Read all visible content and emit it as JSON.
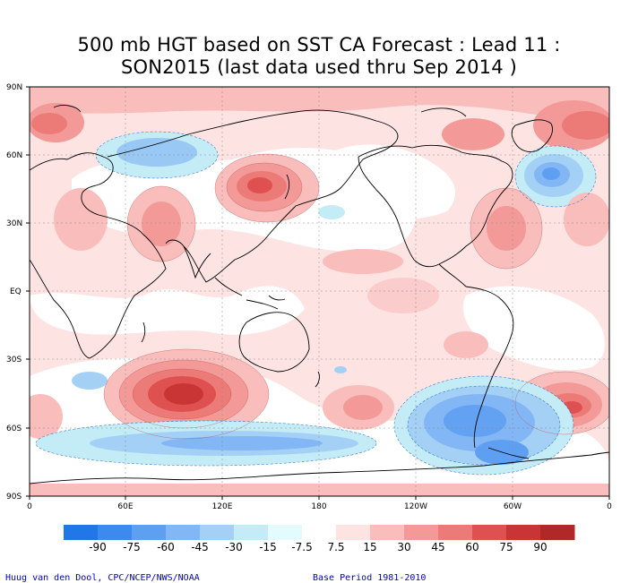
{
  "title": {
    "line1": "500 mb HGT based on SST CA Forecast : Lead 11 :",
    "line2": "SON2015 (last data used thru Sep 2014 )"
  },
  "lat_labels": [
    "90N",
    "60N",
    "30N",
    "EQ",
    "30S",
    "60S",
    "90S"
  ],
  "lon_labels": [
    "0",
    "60E",
    "120E",
    "180",
    "120W",
    "60W",
    "0"
  ],
  "colorbar": {
    "labels": [
      "-90",
      "-75",
      "-60",
      "-45",
      "-30",
      "-15",
      "-7.5",
      "7.5",
      "15",
      "30",
      "45",
      "60",
      "75",
      "90"
    ],
    "colors": [
      "#2176e8",
      "#3c8af0",
      "#5f9ff2",
      "#83b6f4",
      "#a4d0f6",
      "#c3ecf7",
      "#e3fbfc",
      "#ffffff",
      "#fde4e3",
      "#f9bdbb",
      "#f39a98",
      "#ec7b78",
      "#df5050",
      "#c93434",
      "#b02828"
    ]
  },
  "credits": {
    "left": "Huug van den Dool, CPC/NCEP/NWS/NOAA",
    "right": "Base Period 1981-2010"
  }
}
